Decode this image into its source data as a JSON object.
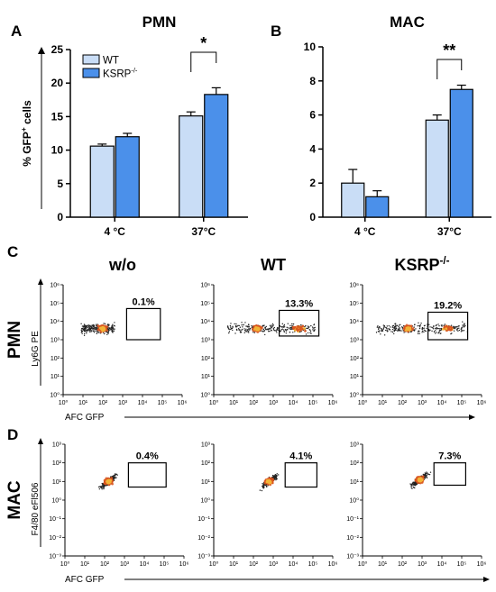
{
  "colors": {
    "wt": "#c9ddf6",
    "ksrp": "#4b90ea",
    "gate": "#000000",
    "dot_dark": "#222222",
    "dot_mid": "#d9561f",
    "dot_hot": "#f2b437"
  },
  "panels": {
    "A": {
      "letter": "A",
      "title": "PMN"
    },
    "B": {
      "letter": "B",
      "title": "MAC"
    },
    "C": {
      "letter": "C",
      "row_label": "PMN",
      "ylabel": "Ly6G PE",
      "xlabel": "AFC GFP"
    },
    "D": {
      "letter": "D",
      "row_label": "MAC",
      "ylabel": "F4/80 eFl506",
      "xlabel": "AFC GFP"
    }
  },
  "flow_columns": [
    "w/o",
    "WT",
    "KSRP"
  ],
  "flow_column_suffix": "-/-",
  "chart_data": [
    {
      "type": "bar",
      "panel": "A",
      "title": "PMN",
      "ylabel": "% GFP",
      "ylabel_suffix": " cells",
      "categories": [
        "4 °C",
        "37°C"
      ],
      "ylim": [
        0,
        25
      ],
      "yticks": [
        0,
        5,
        10,
        15,
        20,
        25
      ],
      "legend": {
        "position": "top-left",
        "entries": [
          "WT",
          "KSRP"
        ],
        "ksrp_superscript": "-/-"
      },
      "series": [
        {
          "name": "WT",
          "values": [
            10.6,
            15.1
          ],
          "errors": [
            0.3,
            0.6
          ]
        },
        {
          "name": "KSRP-/-",
          "values": [
            12.0,
            18.3
          ],
          "errors": [
            0.5,
            1.0
          ]
        }
      ],
      "significance": {
        "category": "37°C",
        "label": "*"
      }
    },
    {
      "type": "bar",
      "panel": "B",
      "title": "MAC",
      "categories": [
        "4 °C",
        "37°C"
      ],
      "ylim": [
        0,
        10
      ],
      "yticks": [
        0,
        2,
        4,
        6,
        8,
        10
      ],
      "series": [
        {
          "name": "WT",
          "values": [
            2.0,
            5.7
          ],
          "errors": [
            0.8,
            0.3
          ]
        },
        {
          "name": "KSRP-/-",
          "values": [
            1.2,
            7.5
          ],
          "errors": [
            0.35,
            0.25
          ]
        }
      ],
      "significance": {
        "category": "37°C",
        "label": "**"
      }
    },
    {
      "type": "scatter",
      "panel": "C",
      "xlabel": "AFC GFP",
      "ylabel": "Ly6G PE",
      "scale": "log",
      "xticks": [
        "10⁰",
        "10¹",
        "10²",
        "10³",
        "10⁴",
        "10⁵",
        "10⁶"
      ],
      "yticks": [
        "10⁰",
        "10¹",
        "10²",
        "10³",
        "10⁴",
        "10⁵",
        "10⁶"
      ],
      "plots": [
        {
          "column": "w/o",
          "gate_pct": "0.1%",
          "gate": {
            "x": [
              3.2,
              4.9
            ],
            "y": [
              3.0,
              4.7
            ]
          },
          "population": {
            "x": [
              0.9,
              2.6
            ],
            "y": [
              3.0,
              4.3
            ],
            "core_x": 2.0,
            "core_y": 3.6
          }
        },
        {
          "column": "WT",
          "gate_pct": "13.3%",
          "gate": {
            "x": [
              3.3,
              5.3
            ],
            "y": [
              3.2,
              4.6
            ]
          },
          "population": {
            "x": [
              0.7,
              5.1
            ],
            "y": [
              3.0,
              4.4
            ],
            "core_x": 2.2,
            "core_y": 3.6
          }
        },
        {
          "column": "KSRP",
          "gate_pct": "19.2%",
          "gate": {
            "x": [
              3.3,
              5.3
            ],
            "y": [
              3.0,
              4.5
            ]
          },
          "population": {
            "x": [
              0.7,
              5.3
            ],
            "y": [
              3.0,
              4.4
            ],
            "core_x": 2.3,
            "core_y": 3.6
          }
        }
      ]
    },
    {
      "type": "scatter",
      "panel": "D",
      "xlabel": "AFC GFP",
      "ylabel": "F4/80 eFl506",
      "scale": "log",
      "xticks": [
        "10⁰",
        "10¹",
        "10²",
        "10³",
        "10⁴",
        "10⁵",
        "10⁶"
      ],
      "yticks": [
        "10⁻³",
        "10⁻²",
        "10⁻¹",
        "10⁰",
        "10¹",
        "10²",
        "10³"
      ],
      "plots": [
        {
          "column": "w/o",
          "gate_pct": "0.4%",
          "gate": {
            "x": [
              3.2,
              5.1
            ],
            "y": [
              3.7,
              5.0
            ]
          },
          "population": {
            "x": [
              1.1,
              3.0
            ],
            "y": [
              3.3,
              4.9
            ],
            "core_x": 2.2,
            "core_y": 4.0
          }
        },
        {
          "column": "WT",
          "gate_pct": "4.1%",
          "gate": {
            "x": [
              3.6,
              5.2
            ],
            "y": [
              3.7,
              5.0
            ]
          },
          "population": {
            "x": [
              1.2,
              4.8
            ],
            "y": [
              3.4,
              4.8
            ],
            "core_x": 2.8,
            "core_y": 4.0
          }
        },
        {
          "column": "KSRP",
          "gate_pct": "7.3%",
          "gate": {
            "x": [
              3.6,
              5.2
            ],
            "y": [
              3.8,
              5.0
            ]
          },
          "population": {
            "x": [
              1.2,
              4.8
            ],
            "y": [
              3.5,
              4.8
            ],
            "core_x": 2.9,
            "core_y": 4.1
          }
        }
      ]
    }
  ]
}
